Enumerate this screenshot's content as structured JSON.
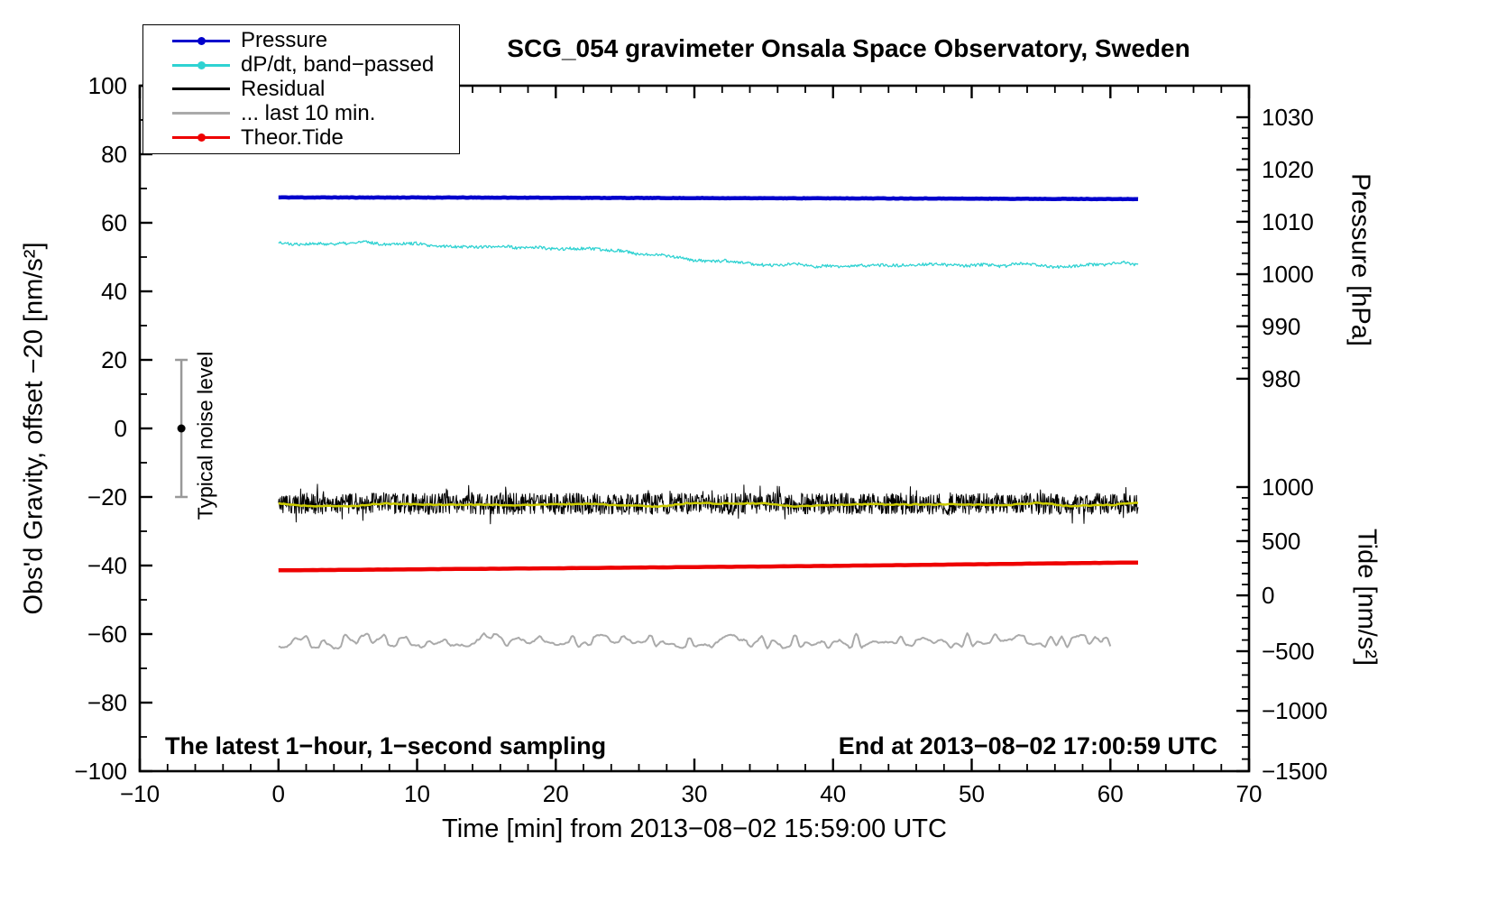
{
  "chart_data": {
    "type": "line",
    "title": "SCG_054 gravimeter Onsala Space Observatory, Sweden",
    "xlabel": "Time [min] from 2013−08−02 15:59:00 UTC",
    "ylabel_left": "Obs'd Gravity, offset −20 [nm/s²]",
    "ylabel_right_top": "Pressure [hPa]",
    "ylabel_right_bottom": "Tide [nm/s²]",
    "x_range": [
      -10,
      70
    ],
    "y_range": [
      -100,
      100
    ],
    "x_minor_step": 2,
    "y_minor_step_left": 10,
    "x_ticks": [
      {
        "label": "−10",
        "v": -10
      },
      {
        "label": "0",
        "v": 0
      },
      {
        "label": "10",
        "v": 10
      },
      {
        "label": "20",
        "v": 20
      },
      {
        "label": "30",
        "v": 30
      },
      {
        "label": "40",
        "v": 40
      },
      {
        "label": "50",
        "v": 50
      },
      {
        "label": "60",
        "v": 60
      },
      {
        "label": "70",
        "v": 70
      }
    ],
    "y_ticks_left": [
      {
        "label": "−100",
        "v": -100
      },
      {
        "label": "−80",
        "v": -80
      },
      {
        "label": "−60",
        "v": -60
      },
      {
        "label": "−40",
        "v": -40
      },
      {
        "label": "−20",
        "v": -20
      },
      {
        "label": "0",
        "v": 0
      },
      {
        "label": "20",
        "v": 20
      },
      {
        "label": "40",
        "v": 40
      },
      {
        "label": "60",
        "v": 60
      },
      {
        "label": "80",
        "v": 80
      },
      {
        "label": "100",
        "v": 100
      }
    ],
    "y_ticks_right_pressure": [
      {
        "label": "1030",
        "v": 90.8
      },
      {
        "label": "1020",
        "v": 75.5
      },
      {
        "label": "1010",
        "v": 60.3
      },
      {
        "label": "1000",
        "v": 45.0
      },
      {
        "label": "990",
        "v": 29.8
      },
      {
        "label": "980",
        "v": 14.5
      }
    ],
    "y_ticks_right_tide": [
      {
        "label": "1000",
        "v": -17.1
      },
      {
        "label": "500",
        "v": -32.9
      },
      {
        "label": "0",
        "v": -48.7
      },
      {
        "label": "−500",
        "v": -65.0
      },
      {
        "label": "−1000",
        "v": -82.4
      },
      {
        "label": "−1500",
        "v": -100.0
      }
    ],
    "legend": [
      {
        "label": "Pressure",
        "color": "#0000cc",
        "dot": true
      },
      {
        "label": "dP/dt, band−passed",
        "color": "#2fd2d2",
        "dot": true
      },
      {
        "label": "Residual",
        "color": "#000000",
        "dot": false
      },
      {
        "label": "... last 10 min.",
        "color": "#aaaaaa",
        "dot": false
      },
      {
        "label": "Theor.Tide",
        "color": "#ee0000",
        "dot": true
      }
    ],
    "noise_annotation": {
      "x": -7,
      "center": 0,
      "half_height": 20,
      "bar_color": "#999999",
      "dot_color": "#000000",
      "label": "Typical noise level"
    },
    "notes": {
      "bottom_left": "The latest 1−hour, 1−second sampling",
      "bottom_right": "End at 2013−08−02 17:00:59 UTC"
    },
    "series": [
      {
        "name": "dpdt_band_passed",
        "color": "#2fd2d2",
        "width": 1.3,
        "points": 900,
        "seed": 22,
        "noise": 0.45,
        "wobble": {
          "amp": 0.55,
          "coarse": 18
        },
        "anchors": [
          [
            0,
            54.0
          ],
          [
            4,
            54.2
          ],
          [
            8,
            53.8
          ],
          [
            12,
            53.6
          ],
          [
            16,
            53.2
          ],
          [
            20,
            52.6
          ],
          [
            24,
            51.8
          ],
          [
            27,
            50.8
          ],
          [
            30,
            49.6
          ],
          [
            33,
            48.5
          ],
          [
            36,
            47.8
          ],
          [
            40,
            47.6
          ],
          [
            44,
            47.9
          ],
          [
            48,
            48.1
          ],
          [
            52,
            47.8
          ],
          [
            56,
            47.6
          ],
          [
            60,
            48.0
          ],
          [
            62,
            48.1
          ]
        ]
      },
      {
        "name": "pressure",
        "color": "#0000cc",
        "width": 4.5,
        "points": 500,
        "seed": 11,
        "noise": 0.06,
        "anchors": [
          [
            0,
            67.4
          ],
          [
            15,
            67.35
          ],
          [
            30,
            67.2
          ],
          [
            45,
            67.1
          ],
          [
            62,
            66.9
          ]
        ]
      },
      {
        "name": "residual",
        "color": "#000000",
        "width": 1.0,
        "points": 1700,
        "seed": 33,
        "noise": 3.1,
        "spike": 0.05,
        "anchors": [
          [
            0,
            -22.0
          ],
          [
            62,
            -22.0
          ]
        ]
      },
      {
        "name": "residual_smoothed",
        "color": "#cccc00",
        "width": 2.5,
        "points": 300,
        "seed": 44,
        "noise": 0.15,
        "wobble": {
          "amp": 0.5,
          "coarse": 12
        },
        "anchors": [
          [
            0,
            -22.3
          ],
          [
            62,
            -22.2
          ]
        ]
      },
      {
        "name": "theor_tide",
        "color": "#ee0000",
        "width": 4.5,
        "points": 200,
        "seed": 55,
        "noise": 0.03,
        "anchors": [
          [
            0,
            -41.4
          ],
          [
            20,
            -40.8
          ],
          [
            40,
            -40.1
          ],
          [
            62,
            -39.1
          ]
        ]
      },
      {
        "name": "residual_last_10_min",
        "color": "#aaaaaa",
        "width": 2.0,
        "points": 600,
        "seed": 66,
        "noise": 0.2,
        "wobble": {
          "amp": 2.1,
          "coarse": 4
        },
        "anchors": [
          [
            0,
            -62.0
          ],
          [
            60,
            -62.0
          ]
        ]
      }
    ]
  }
}
